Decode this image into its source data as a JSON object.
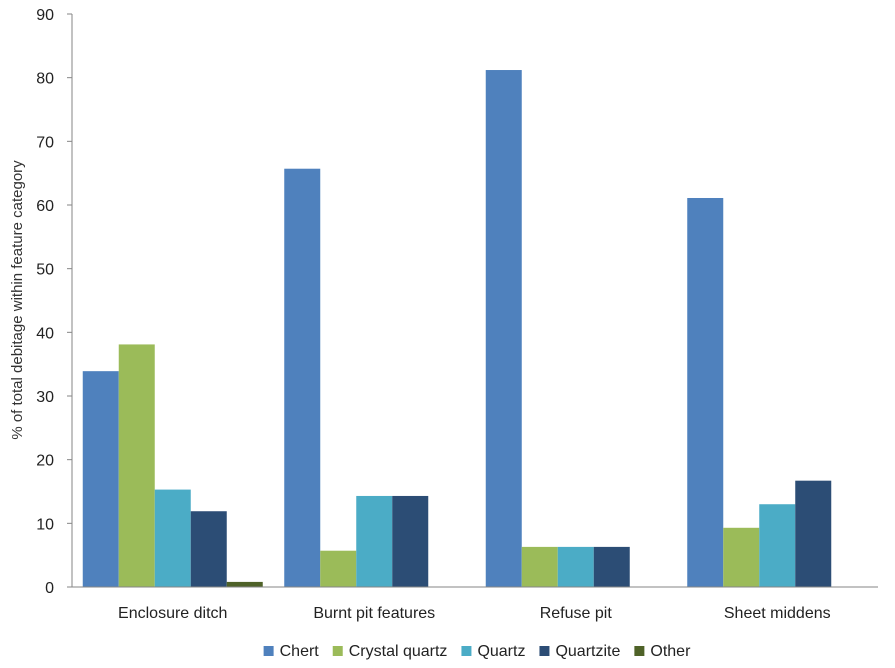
{
  "chart_data": {
    "type": "bar",
    "title": "",
    "xlabel": "",
    "ylabel": "% of total debitage within feature category",
    "ylim": [
      0,
      90
    ],
    "yticks": [
      0,
      10,
      20,
      30,
      40,
      50,
      60,
      70,
      80,
      90
    ],
    "grid": false,
    "legend_position": "bottom",
    "categories": [
      "Enclosure ditch",
      "Burnt pit features",
      "Refuse pit",
      "Sheet middens"
    ],
    "series": [
      {
        "name": "Chert",
        "color": "#4f81bd",
        "values": [
          33.9,
          65.7,
          81.2,
          61.1
        ]
      },
      {
        "name": "Crystal quartz",
        "color": "#9bbb59",
        "values": [
          38.1,
          5.7,
          6.3,
          9.3
        ]
      },
      {
        "name": "Quartz",
        "color": "#4bacc6",
        "values": [
          15.3,
          14.3,
          6.3,
          13.0
        ]
      },
      {
        "name": "Quartzite",
        "color": "#2c4d75",
        "values": [
          11.9,
          14.3,
          6.3,
          16.7
        ]
      },
      {
        "name": "Other",
        "color": "#4f6228",
        "values": [
          0.8,
          0,
          0,
          0
        ]
      }
    ]
  }
}
